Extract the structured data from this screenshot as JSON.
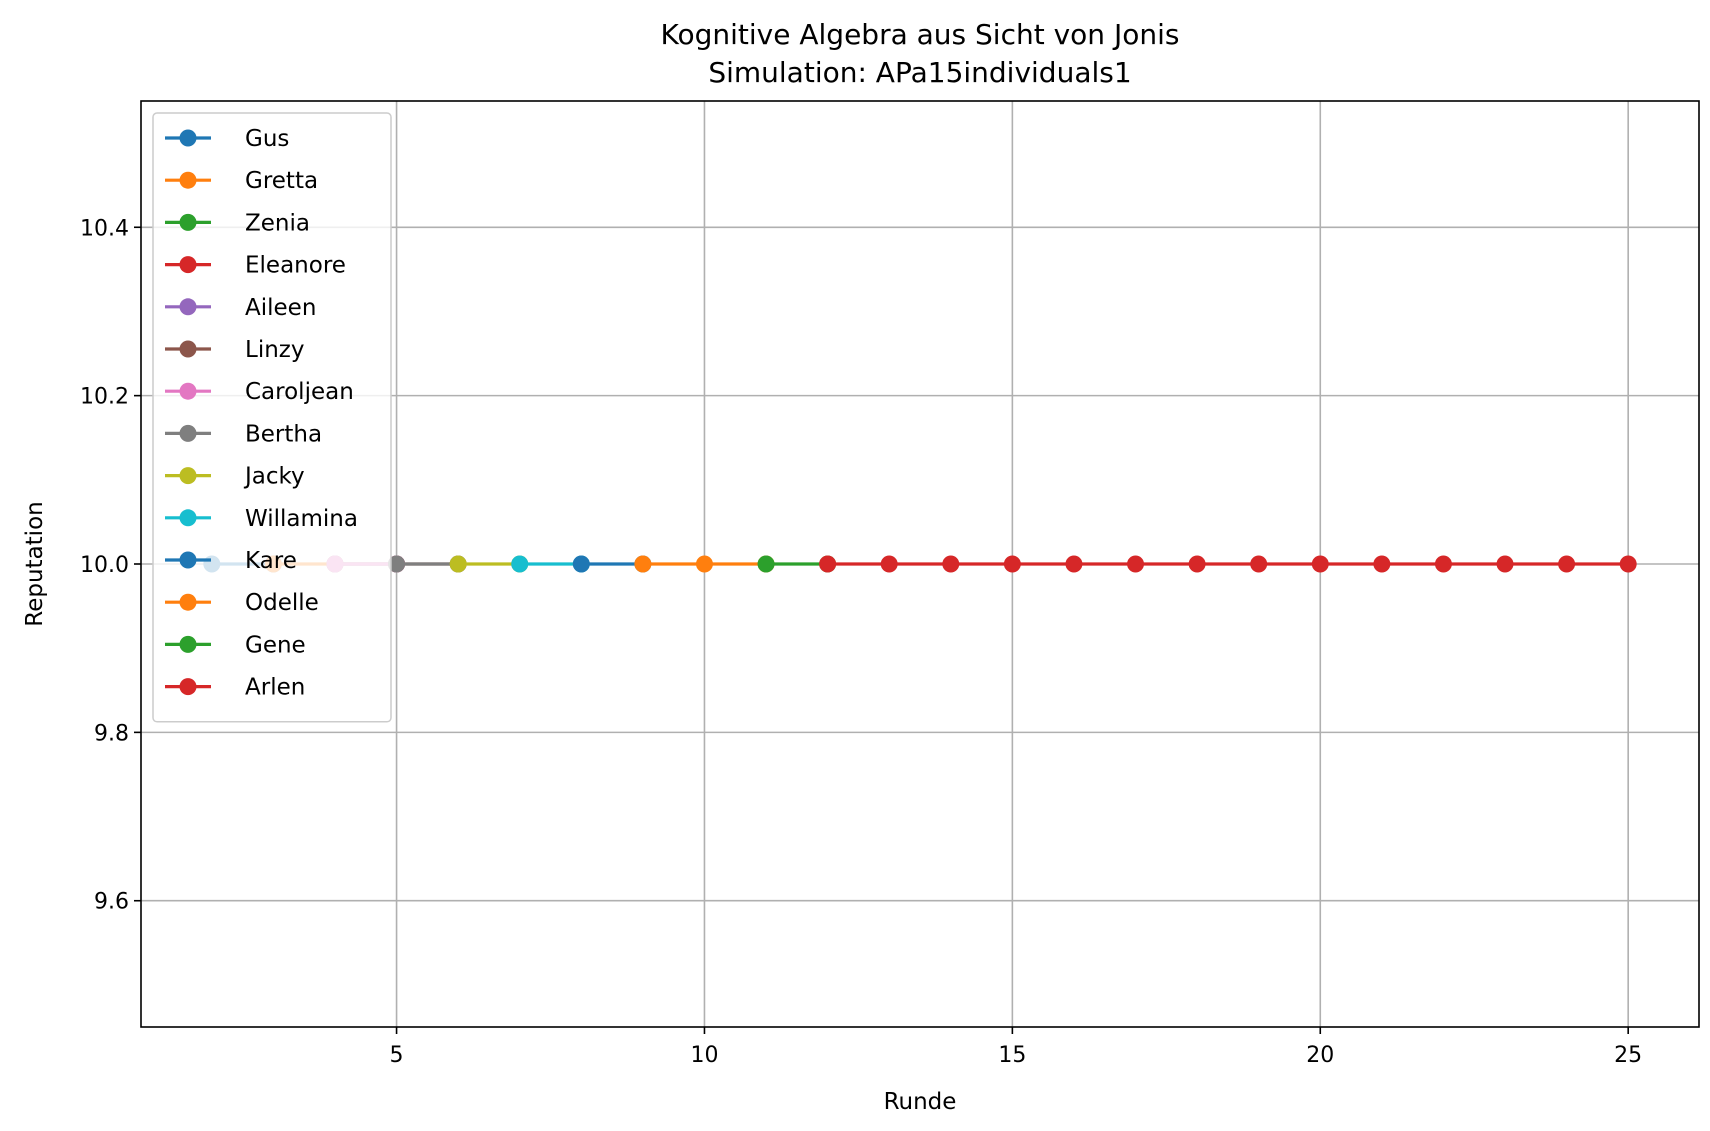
{
  "chart_data": {
    "type": "line",
    "title": "Kognitive Algebra aus Sicht von Jonis",
    "subtitle": "Simulation: APa15individuals1",
    "xlabel": "Runde",
    "ylabel": "Reputation",
    "xlim": [
      0.85,
      26.15
    ],
    "ylim": [
      9.45,
      10.55
    ],
    "xticks": [
      5,
      10,
      15,
      20,
      25
    ],
    "yticks": [
      9.6,
      9.8,
      10.0,
      10.2,
      10.4
    ],
    "ytick_labels": [
      "9.6",
      "9.8",
      "10.0",
      "10.2",
      "10.4"
    ],
    "grid": true,
    "legend_position": "upper-left",
    "series": [
      {
        "name": "Gus",
        "color": "#1f77b4",
        "x": [
          2,
          3
        ],
        "y": [
          10.0,
          10.0
        ]
      },
      {
        "name": "Gretta",
        "color": "#ff7f0e",
        "x": [
          3,
          4
        ],
        "y": [
          10.0,
          10.0
        ]
      },
      {
        "name": "Zenia",
        "color": "#2ca02c",
        "x": [
          4,
          5
        ],
        "y": [
          10.0,
          10.0
        ]
      },
      {
        "name": "Eleanore",
        "color": "#d62728",
        "x": [
          4,
          5
        ],
        "y": [
          10.0,
          10.0
        ]
      },
      {
        "name": "Aileen",
        "color": "#9467bd",
        "x": [
          4,
          5
        ],
        "y": [
          10.0,
          10.0
        ]
      },
      {
        "name": "Linzy",
        "color": "#8c564b",
        "x": [
          5,
          6
        ],
        "y": [
          10.0,
          10.0
        ]
      },
      {
        "name": "Caroljean",
        "color": "#e377c2",
        "x": [
          4,
          5
        ],
        "y": [
          10.0,
          10.0
        ]
      },
      {
        "name": "Bertha",
        "color": "#7f7f7f",
        "x": [
          5,
          6
        ],
        "y": [
          10.0,
          10.0
        ]
      },
      {
        "name": "Jacky",
        "color": "#bcbd22",
        "x": [
          6,
          7
        ],
        "y": [
          10.0,
          10.0
        ]
      },
      {
        "name": "Willamina",
        "color": "#17becf",
        "x": [
          7,
          8
        ],
        "y": [
          10.0,
          10.0
        ]
      },
      {
        "name": "Kare",
        "color": "#1f77b4",
        "x": [
          8,
          9
        ],
        "y": [
          10.0,
          10.0
        ]
      },
      {
        "name": "Odelle",
        "color": "#ff7f0e",
        "x": [
          9,
          10,
          11
        ],
        "y": [
          10.0,
          10.0,
          10.0
        ]
      },
      {
        "name": "Gene",
        "color": "#2ca02c",
        "x": [
          11,
          12
        ],
        "y": [
          10.0,
          10.0
        ]
      },
      {
        "name": "Arlen",
        "color": "#d62728",
        "x": [
          12,
          13,
          14,
          15,
          16,
          17,
          18,
          19,
          20,
          21,
          22,
          23,
          24,
          25
        ],
        "y": [
          10.0,
          10.0,
          10.0,
          10.0,
          10.0,
          10.0,
          10.0,
          10.0,
          10.0,
          10.0,
          10.0,
          10.0,
          10.0,
          10.0
        ]
      }
    ]
  }
}
